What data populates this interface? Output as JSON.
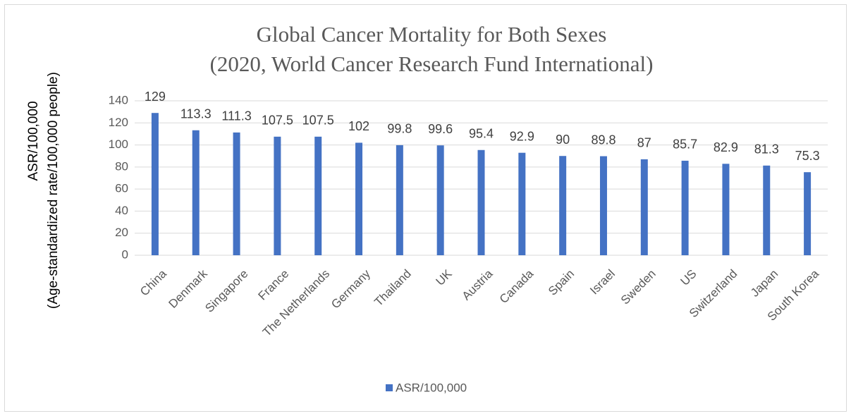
{
  "chart_data": {
    "type": "bar",
    "title": [
      "Global Cancer Mortality for Both Sexes",
      "(2020, World Cancer Research Fund International)"
    ],
    "y_label": [
      "ASR/100,000",
      "(Age-standardized rate/100,000 people)"
    ],
    "categories": [
      "China",
      "Denmark",
      "Singapore",
      "France",
      "The Netherlands",
      "Germany",
      "Thailand",
      "UK",
      "Austria",
      "Canada",
      "Spain",
      "Israel",
      "Sweden",
      "US",
      "Switzerland",
      "Japan",
      "South Korea"
    ],
    "series": [
      {
        "name": "ASR/100,000",
        "color": "#4472c4",
        "values": [
          129,
          113.3,
          111.3,
          107.5,
          107.5,
          102,
          99.8,
          99.6,
          95.4,
          92.9,
          90,
          89.8,
          87,
          85.7,
          82.9,
          81.3,
          75.3
        ]
      }
    ],
    "ylim": [
      0,
      140
    ],
    "yticks": [
      0,
      20,
      40,
      60,
      80,
      100,
      120,
      140
    ],
    "grid": true,
    "legend": "bottom"
  }
}
